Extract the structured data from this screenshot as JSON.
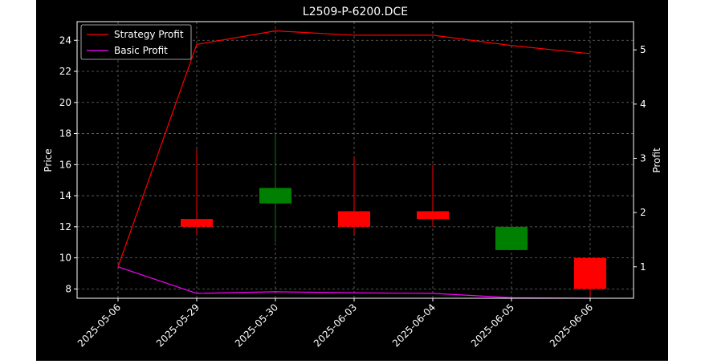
{
  "chart_data": {
    "type": "candlestick",
    "title": "L2509-P-6200.DCE",
    "xlabel": "",
    "ylabel": "Price",
    "y2label": "Profit",
    "background": "#000000",
    "grid": true,
    "legend_position": "top-left",
    "categories": [
      "2025-05-06",
      "2025-05-29",
      "2025-05-30",
      "2025-06-03",
      "2025-06-04",
      "2025-06-05",
      "2025-06-06"
    ],
    "ylim": [
      7.4,
      25.2
    ],
    "y_ticks": [
      8,
      10,
      12,
      14,
      16,
      18,
      20,
      22,
      24
    ],
    "y2lim": [
      0.42,
      5.52
    ],
    "y2_ticks": [
      1,
      2,
      3,
      4,
      5
    ],
    "candles": [
      {
        "date": "2025-05-06",
        "open": 9.4,
        "high": 9.4,
        "low": 9.4,
        "close": 9.4,
        "color": "#ff0000"
      },
      {
        "date": "2025-05-29",
        "open": 12.0,
        "high": 17.0,
        "low": 11.5,
        "close": 12.5,
        "color": "#ff0000"
      },
      {
        "date": "2025-05-30",
        "open": 14.5,
        "high": 18.0,
        "low": 11.0,
        "close": 13.5,
        "color": "#008000"
      },
      {
        "date": "2025-06-03",
        "open": 12.0,
        "high": 16.5,
        "low": 11.5,
        "close": 13.0,
        "color": "#ff0000"
      },
      {
        "date": "2025-06-04",
        "open": 12.5,
        "high": 16.0,
        "low": 12.0,
        "close": 13.0,
        "color": "#ff0000"
      },
      {
        "date": "2025-06-05",
        "open": 12.0,
        "high": 12.0,
        "low": 10.5,
        "close": 10.5,
        "color": "#008000"
      },
      {
        "date": "2025-06-06",
        "open": 8.0,
        "high": 10.0,
        "low": 7.5,
        "close": 10.0,
        "color": "#ff0000"
      }
    ],
    "series": [
      {
        "name": "Strategy Profit",
        "axis": "right",
        "color": "#ff0000",
        "values": [
          1.0,
          5.1,
          5.35,
          5.27,
          5.27,
          5.08,
          4.93
        ]
      },
      {
        "name": "Basic Profit",
        "axis": "right",
        "color": "#ff00ff",
        "values": [
          1.0,
          0.51,
          0.54,
          0.52,
          0.51,
          0.43,
          0.42
        ]
      }
    ]
  }
}
